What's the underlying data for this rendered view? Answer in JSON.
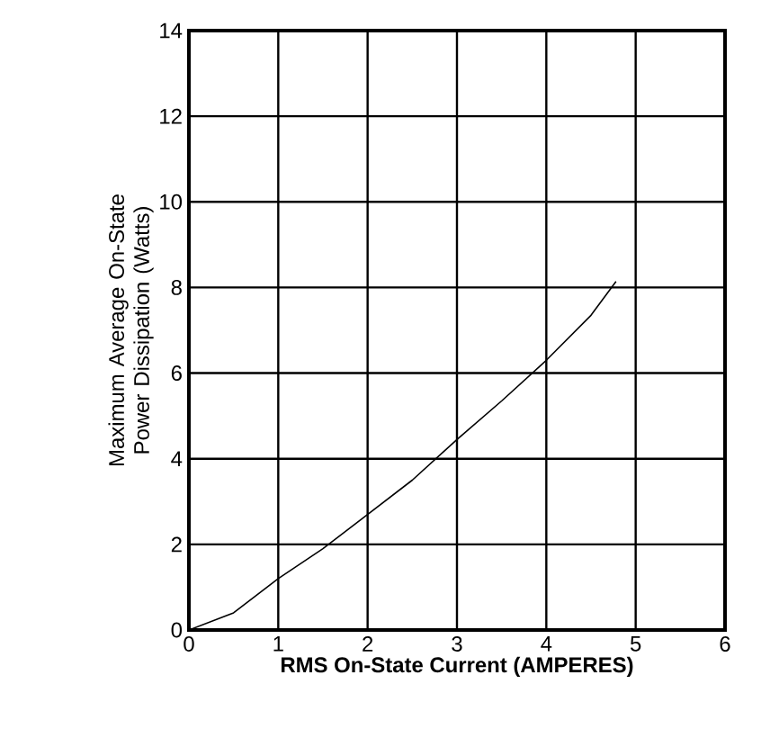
{
  "chart_data": {
    "type": "line",
    "xlabel": "RMS On-State Current (AMPERES)",
    "ylabel": "Maximum Average On-State Power Dissipation (Watts)",
    "x": [
      0,
      0.5,
      1,
      1.5,
      2,
      2.5,
      3,
      3.5,
      4,
      4.5,
      4.78
    ],
    "values": [
      0,
      0.4,
      1.2,
      1.9,
      2.7,
      3.5,
      4.45,
      5.35,
      6.3,
      7.35,
      8.14
    ],
    "color": "#000000",
    "xlim": [
      0,
      6
    ],
    "ylim": [
      0,
      14
    ],
    "xticks": [
      0,
      1,
      2,
      3,
      4,
      5,
      6
    ],
    "yticks": [
      0,
      2,
      4,
      6,
      8,
      10,
      12,
      14
    ],
    "grid": true,
    "marker": "none",
    "line_style": "solid"
  }
}
